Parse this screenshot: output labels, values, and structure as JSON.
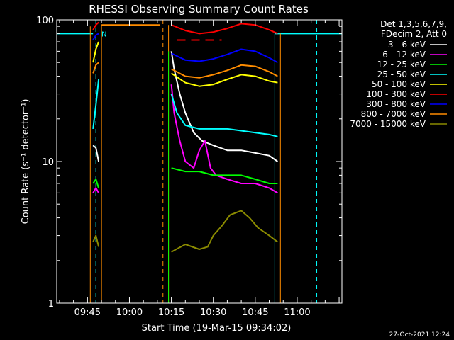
{
  "chart_data": {
    "type": "line",
    "title": "RHESSI Observing Summary Count Rates",
    "xlabel": "Start Time (19-Mar-15 09:34:02)",
    "ylabel": "Count Rate (s⁻¹ detector⁻¹)",
    "yscale": "log",
    "ylim": [
      1,
      100
    ],
    "xlim": [
      "09:34",
      "11:16"
    ],
    "x_ticks": [
      "09:45",
      "10:00",
      "10:15",
      "10:30",
      "10:45",
      "11:00"
    ],
    "y_ticks": [
      "1",
      "10",
      "100"
    ],
    "legend_header": [
      "Det 1,3,5,6,7,9,",
      "FDecim 2, Att 0"
    ],
    "legend_position": "right",
    "footer_date": "27-Oct-2021 12:24",
    "flag_label": "N",
    "series": [
      {
        "name": "3 - 6 keV",
        "color": "#ffffff",
        "points": [
          [
            "09:47",
            13
          ],
          [
            "09:48",
            12.5
          ],
          [
            "09:49",
            10
          ],
          [
            "10:15",
            60
          ],
          [
            "10:16",
            45
          ],
          [
            "10:18",
            30
          ],
          [
            "10:20",
            22
          ],
          [
            "10:23",
            16
          ],
          [
            "10:26",
            14
          ],
          [
            "10:30",
            13
          ],
          [
            "10:35",
            12
          ],
          [
            "10:40",
            12
          ],
          [
            "10:45",
            11.5
          ],
          [
            "10:50",
            11
          ],
          [
            "10:53",
            10
          ]
        ]
      },
      {
        "name": "6 - 12 keV",
        "color": "#ff00ff",
        "points": [
          [
            "09:47",
            6
          ],
          [
            "09:48",
            6.5
          ],
          [
            "09:49",
            6
          ],
          [
            "10:15",
            35
          ],
          [
            "10:16",
            22
          ],
          [
            "10:18",
            14
          ],
          [
            "10:20",
            10
          ],
          [
            "10:23",
            9
          ],
          [
            "10:25",
            12
          ],
          [
            "10:27",
            14
          ],
          [
            "10:29",
            9
          ],
          [
            "10:31",
            8
          ],
          [
            "10:35",
            7.5
          ],
          [
            "10:40",
            7
          ],
          [
            "10:45",
            7
          ],
          [
            "10:50",
            6.5
          ],
          [
            "10:53",
            6
          ]
        ]
      },
      {
        "name": "12 - 25 keV",
        "color": "#00ff00",
        "points": [
          [
            "09:47",
            7
          ],
          [
            "09:48",
            7.5
          ],
          [
            "09:49",
            6.5
          ],
          [
            "10:15",
            9
          ],
          [
            "10:20",
            8.5
          ],
          [
            "10:25",
            8.5
          ],
          [
            "10:30",
            8
          ],
          [
            "10:35",
            8
          ],
          [
            "10:40",
            8
          ],
          [
            "10:45",
            7.5
          ],
          [
            "10:50",
            7
          ],
          [
            "10:53",
            7
          ]
        ]
      },
      {
        "name": "25 - 50 keV",
        "color": "#00ffff",
        "points": [
          [
            "09:47",
            17
          ],
          [
            "09:48",
            25
          ],
          [
            "09:49",
            38
          ],
          [
            "10:15",
            30
          ],
          [
            "10:17",
            22
          ],
          [
            "10:20",
            18
          ],
          [
            "10:25",
            17
          ],
          [
            "10:30",
            17
          ],
          [
            "10:35",
            17
          ],
          [
            "10:40",
            16.5
          ],
          [
            "10:45",
            16
          ],
          [
            "10:50",
            15.5
          ],
          [
            "10:53",
            15
          ]
        ]
      },
      {
        "name": "50 - 100 keV",
        "color": "#ffff00",
        "points": [
          [
            "09:47",
            50
          ],
          [
            "09:48",
            62
          ],
          [
            "09:49",
            70
          ],
          [
            "10:15",
            42
          ],
          [
            "10:20",
            36
          ],
          [
            "10:25",
            34
          ],
          [
            "10:30",
            35
          ],
          [
            "10:35",
            38
          ],
          [
            "10:40",
            41
          ],
          [
            "10:45",
            40
          ],
          [
            "10:50",
            37
          ],
          [
            "10:53",
            36
          ]
        ]
      },
      {
        "name": "100 - 300 keV",
        "color": "#ff0000",
        "points": [
          [
            "09:47",
            85
          ],
          [
            "09:48",
            92
          ],
          [
            "09:49",
            96
          ],
          [
            "10:15",
            92
          ],
          [
            "10:20",
            84
          ],
          [
            "10:25",
            80
          ],
          [
            "10:30",
            82
          ],
          [
            "10:35",
            87
          ],
          [
            "10:40",
            94
          ],
          [
            "10:45",
            92
          ],
          [
            "10:50",
            85
          ],
          [
            "10:53",
            80
          ]
        ]
      },
      {
        "name": "300 - 800 keV",
        "color": "#0000ff",
        "points": [
          [
            "09:47",
            72
          ],
          [
            "09:48",
            78
          ],
          [
            "09:49",
            80
          ],
          [
            "10:15",
            58
          ],
          [
            "10:20",
            52
          ],
          [
            "10:25",
            51
          ],
          [
            "10:30",
            53
          ],
          [
            "10:35",
            57
          ],
          [
            "10:40",
            62
          ],
          [
            "10:45",
            60
          ],
          [
            "10:50",
            54
          ],
          [
            "10:53",
            50
          ]
        ]
      },
      {
        "name": "800 - 7000 keV",
        "color": "#ff8c00",
        "points": [
          [
            "09:47",
            42
          ],
          [
            "09:48",
            48
          ],
          [
            "09:49",
            50
          ],
          [
            "10:15",
            45
          ],
          [
            "10:20",
            40
          ],
          [
            "10:25",
            39
          ],
          [
            "10:30",
            41
          ],
          [
            "10:35",
            44
          ],
          [
            "10:40",
            48
          ],
          [
            "10:45",
            47
          ],
          [
            "10:50",
            43
          ],
          [
            "10:53",
            40
          ]
        ]
      },
      {
        "name": "7000 - 15000 keV",
        "color": "#8b8b00",
        "points": [
          [
            "09:47",
            2.7
          ],
          [
            "09:48",
            3
          ],
          [
            "09:49",
            2.5
          ],
          [
            "10:15",
            2.3
          ],
          [
            "10:20",
            2.6
          ],
          [
            "10:25",
            2.4
          ],
          [
            "10:28",
            2.5
          ],
          [
            "10:30",
            3
          ],
          [
            "10:33",
            3.5
          ],
          [
            "10:36",
            4.2
          ],
          [
            "10:40",
            4.5
          ],
          [
            "10:43",
            4
          ],
          [
            "10:46",
            3.4
          ],
          [
            "10:50",
            3
          ],
          [
            "10:53",
            2.7
          ]
        ]
      }
    ],
    "extra_lines": [
      {
        "name": "cyan-level-left",
        "color": "#00ffff",
        "width": 2,
        "points": [
          [
            "09:34",
            80
          ],
          [
            "09:47",
            80
          ]
        ]
      },
      {
        "name": "orange-level-mid",
        "color": "#ff8c00",
        "width": 2,
        "points": [
          [
            "09:50",
            92
          ],
          [
            "10:11",
            92
          ]
        ]
      },
      {
        "name": "cyan-level-right",
        "color": "#00ffff",
        "width": 2,
        "points": [
          [
            "10:52",
            80
          ],
          [
            "11:16",
            80
          ]
        ]
      },
      {
        "name": "red-dash-segments",
        "color": "#ff0000",
        "width": 2,
        "dash": "12,8",
        "points": [
          [
            "10:17",
            72
          ],
          [
            "10:33",
            72
          ]
        ]
      },
      {
        "name": "cyan-rise-left",
        "color": "#00ffff",
        "width": 1,
        "points": [
          [
            "09:34",
            1
          ],
          [
            "09:34",
            80
          ]
        ]
      },
      {
        "name": "cyan-rise-right",
        "color": "#00ffff",
        "width": 1,
        "points": [
          [
            "10:52",
            1
          ],
          [
            "10:52",
            80
          ]
        ]
      },
      {
        "name": "orange-edge-left",
        "color": "#ff8c00",
        "width": 1,
        "points": [
          [
            "09:46",
            1
          ],
          [
            "09:46",
            90
          ]
        ]
      },
      {
        "name": "orange-edge-mid",
        "color": "#ff8c00",
        "width": 1,
        "points": [
          [
            "09:50",
            1
          ],
          [
            "09:50",
            92
          ]
        ]
      },
      {
        "name": "orange-edge-flare",
        "color": "#ff8c00",
        "width": 1,
        "points": [
          [
            "10:14",
            1
          ],
          [
            "10:14",
            92
          ]
        ]
      },
      {
        "name": "orange-edge-right",
        "color": "#ff8c00",
        "width": 1,
        "points": [
          [
            "10:54",
            1
          ],
          [
            "10:54",
            80
          ]
        ]
      },
      {
        "name": "green-edge",
        "color": "#00ff00",
        "width": 1,
        "points": [
          [
            "10:14",
            1
          ],
          [
            "10:14",
            60
          ]
        ]
      }
    ],
    "vlines": [
      {
        "name": "saa-start",
        "x": "09:48",
        "color": "#00ffff",
        "dash": "6,5"
      },
      {
        "name": "night-start",
        "x": "10:12",
        "color": "#ff8c00",
        "dash": "6,5"
      },
      {
        "name": "saa-end",
        "x": "11:07",
        "color": "#00ffff",
        "dash": "6,5"
      }
    ]
  }
}
